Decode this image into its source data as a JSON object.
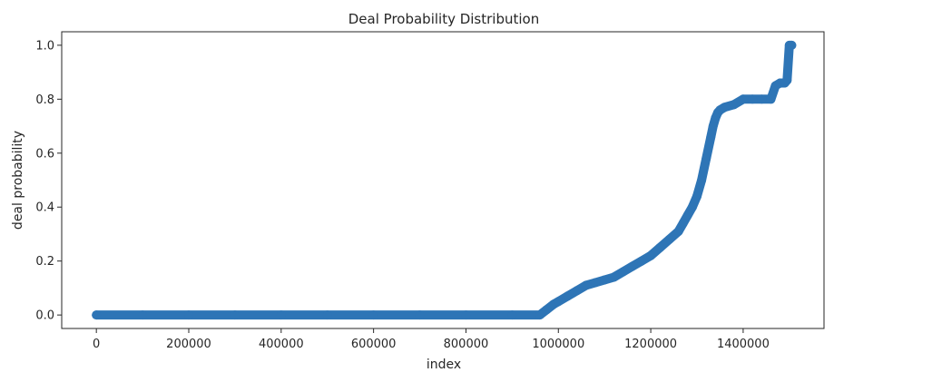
{
  "chart_data": {
    "type": "scatter",
    "title": "Deal Probability Distribution",
    "xlabel": "index",
    "ylabel": "deal probability",
    "xlim": [
      -75000,
      1575000
    ],
    "ylim": [
      -0.05,
      1.05
    ],
    "xticks": [
      0,
      200000,
      400000,
      600000,
      800000,
      1000000,
      1200000,
      1400000
    ],
    "xtick_labels": [
      "0",
      "200000",
      "400000",
      "600000",
      "800000",
      "1000000",
      "1200000",
      "1400000"
    ],
    "yticks": [
      0.0,
      0.2,
      0.4,
      0.6,
      0.8,
      1.0
    ],
    "ytick_labels": [
      "0.0",
      "0.2",
      "0.4",
      "0.6",
      "0.8",
      "1.0"
    ],
    "grid": false,
    "marker_color": "#2e75b6",
    "x": [
      0,
      100000,
      200000,
      300000,
      400000,
      500000,
      600000,
      700000,
      800000,
      900000,
      960000,
      975000,
      990000,
      1000000,
      1020000,
      1040000,
      1060000,
      1080000,
      1100000,
      1120000,
      1140000,
      1160000,
      1180000,
      1200000,
      1220000,
      1240000,
      1260000,
      1270000,
      1280000,
      1290000,
      1300000,
      1310000,
      1320000,
      1330000,
      1335000,
      1340000,
      1345000,
      1350000,
      1360000,
      1380000,
      1400000,
      1420000,
      1440000,
      1460000,
      1470000,
      1480000,
      1490000,
      1495000,
      1500000,
      1505000
    ],
    "y": [
      0,
      0,
      0,
      0,
      0,
      0,
      0,
      0,
      0,
      0,
      0,
      0.02,
      0.04,
      0.05,
      0.07,
      0.09,
      0.11,
      0.12,
      0.13,
      0.14,
      0.16,
      0.18,
      0.2,
      0.22,
      0.25,
      0.28,
      0.31,
      0.34,
      0.37,
      0.4,
      0.44,
      0.5,
      0.58,
      0.66,
      0.7,
      0.73,
      0.75,
      0.76,
      0.77,
      0.78,
      0.8,
      0.8,
      0.8,
      0.8,
      0.85,
      0.86,
      0.86,
      0.87,
      1.0,
      1.0
    ]
  }
}
